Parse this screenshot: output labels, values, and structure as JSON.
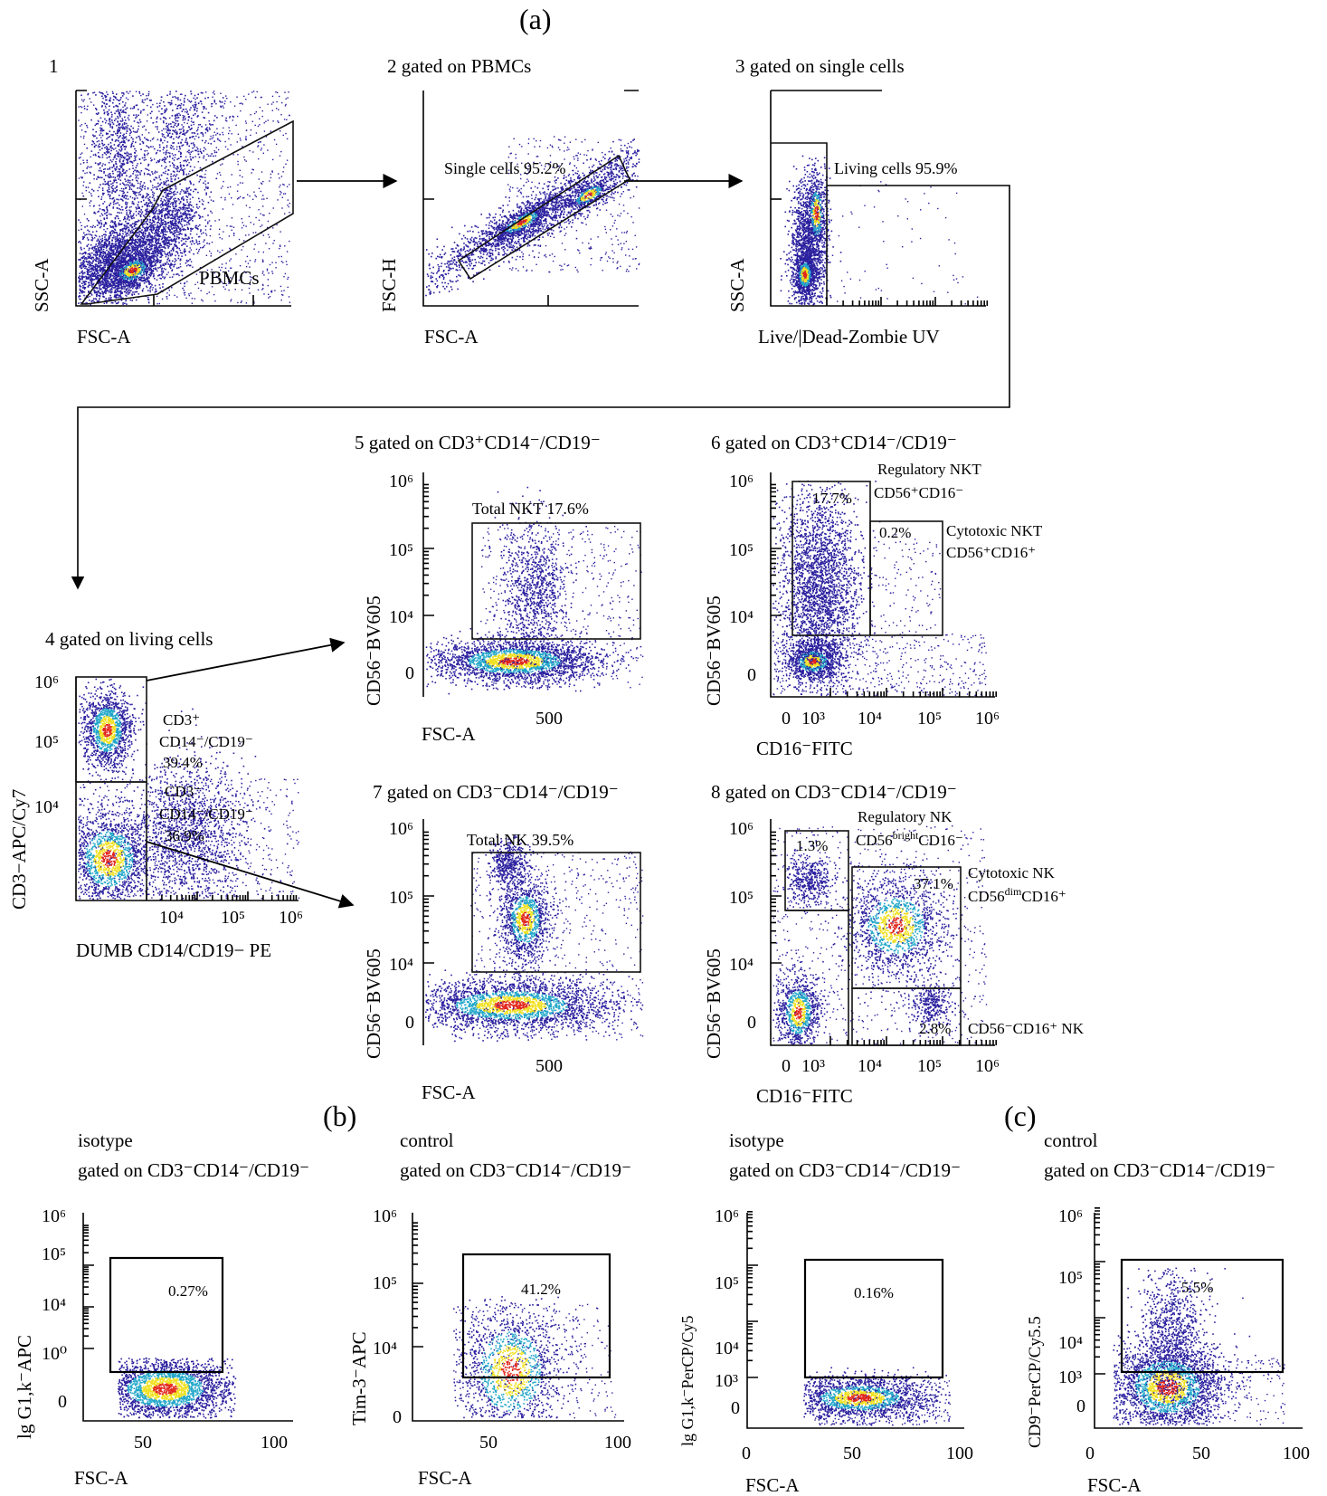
{
  "panel_labels": {
    "a": "(a)",
    "b": "(b)",
    "c": "(c)"
  },
  "colors": {
    "density_low": "#2a1f9e",
    "density_mid": "#22a7c9",
    "density_high": "#f0e020",
    "density_peak": "#e2261c"
  },
  "plot1": {
    "number": "1",
    "xlabel": "FSC-A",
    "ylabel": "SSC-A",
    "gate_label": "PBMCs"
  },
  "plot2": {
    "header": "2 gated on PBMCs",
    "xlabel": "FSC-A",
    "ylabel": "FSC-H",
    "gate_label": "Single cells 95.2%"
  },
  "plot3": {
    "header": "3 gated on single cells",
    "xlabel": "Live/|Dead-Zombie UV",
    "ylabel": "SSC-A",
    "gate_label": "Living cells 95.9%"
  },
  "plot4": {
    "header": "4 gated on living cells",
    "xlabel": "DUMB CD14/CD19− PE",
    "ylabel": "CD3−APC/Cy7",
    "y_ticks": [
      "10⁶",
      "10⁵",
      "10⁴"
    ],
    "x_ticks": [
      "10⁴",
      "10⁵",
      "10⁶"
    ],
    "gate_upper": [
      "CD3⁺",
      "CD14⁻/CD19⁻",
      "39.4%"
    ],
    "gate_lower": [
      "CD3⁻",
      "CD14⁻/CD19⁻",
      "36.9%"
    ]
  },
  "plot5": {
    "header": "5 gated on CD3⁺CD14⁻/CD19⁻",
    "xlabel": "FSC-A",
    "ylabel": "CD56⁻BV605",
    "y_ticks": [
      "10⁶",
      "10⁵",
      "10⁴",
      "0"
    ],
    "x_ticks": [
      "500"
    ],
    "gate_label": "Total NKT 17.6%"
  },
  "plot6": {
    "header": "6 gated on CD3⁺CD14⁻/CD19⁻",
    "xlabel": "CD16⁻FITC",
    "ylabel": "CD56⁻BV605",
    "y_ticks": [
      "10⁶",
      "10⁵",
      "10⁴",
      "0"
    ],
    "x_ticks": [
      "0",
      "10³",
      "10⁴",
      "10⁵",
      "10⁶"
    ],
    "gate1_pct": "17.7%",
    "gate1_name": "Regulatory NKT",
    "gate1_pheno": "CD56⁺CD16⁻",
    "gate2_pct": "0.2%",
    "gate2_name": "Cytotoxic NKT",
    "gate2_pheno": "CD56⁺CD16⁺"
  },
  "plot7": {
    "header": "7 gated on CD3⁻CD14⁻/CD19⁻",
    "xlabel": "FSC-A",
    "ylabel": "CD56⁻BV605",
    "y_ticks": [
      "10⁶",
      "10⁵",
      "10⁴",
      "0"
    ],
    "x_ticks": [
      "500"
    ],
    "gate_label": "Total NK 39.5%"
  },
  "plot8": {
    "header": "8 gated on CD3⁻CD14⁻/CD19⁻",
    "xlabel": "CD16⁻FITC",
    "ylabel": "CD56⁻BV605",
    "y_ticks": [
      "10⁶",
      "10⁵",
      "10⁴",
      "0"
    ],
    "x_ticks": [
      "0",
      "10³",
      "10⁴",
      "10⁵",
      "10⁶"
    ],
    "gate1_pct": "1.3%",
    "gate1_name": "Regulatory NK",
    "gate1_pheno_a": "CD56",
    "gate1_pheno_sup": "bright",
    "gate1_pheno_b": "CD16⁻",
    "gate2_pct": "37.1%",
    "gate2_name": "Cytotoxic NK",
    "gate2_pheno_a": "CD56",
    "gate2_pheno_sup": "dim",
    "gate2_pheno_b": "CD16⁺",
    "gate3_pct": "2.8%",
    "gate3_name": "CD56⁻CD16⁺ NK"
  },
  "plot_b1": {
    "title_line1": "isotype",
    "title_line2": "gated on CD3⁻CD14⁻/CD19⁻",
    "xlabel": "FSC-A",
    "ylabel": "lg G1,k⁻APC",
    "y_ticks": [
      "10⁶",
      "10⁵",
      "10⁴",
      "10⁰",
      "0"
    ],
    "x_ticks": [
      "50",
      "100"
    ],
    "gate_pct": "0.27%"
  },
  "plot_b2": {
    "title_line1": "control",
    "title_line2": "gated on CD3⁻CD14⁻/CD19⁻",
    "xlabel": "FSC-A",
    "ylabel": "Tim-3⁻APC",
    "y_ticks": [
      "10⁶",
      "10⁵",
      "10⁴",
      "0"
    ],
    "x_ticks": [
      "50",
      "100"
    ],
    "gate_pct": "41.2%"
  },
  "plot_c1": {
    "title_line1": "isotype",
    "title_line2": "gated on CD3⁻CD14⁻/CD19⁻",
    "xlabel": "FSC-A",
    "ylabel": "lg G1,k⁻PerCP/Cy5",
    "y_ticks": [
      "10⁶",
      "10⁵",
      "10⁴",
      "10³",
      "0"
    ],
    "x_ticks": [
      "0",
      "50",
      "100"
    ],
    "gate_pct": "0.16%"
  },
  "plot_c2": {
    "title_line1": "control",
    "title_line2": "gated on CD3⁻CD14⁻/CD19⁻",
    "xlabel": "FSC-A",
    "ylabel": "CD9⁻PerCP/Cy5.5",
    "y_ticks": [
      "10⁶",
      "10⁵",
      "10⁴",
      "10³",
      "0"
    ],
    "x_ticks": [
      "0",
      "50",
      "100"
    ],
    "gate_pct": "5.5%"
  }
}
